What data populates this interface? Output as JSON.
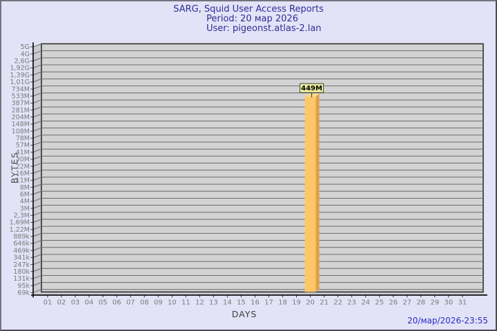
{
  "header": {
    "title": "SARG, Squid User Access Reports",
    "period": "Period: 20 мар 2026",
    "user": "User: pigeonst.atlas-2.lan"
  },
  "footer": {
    "generated": "20/мар/2026-23:55"
  },
  "chart_data": {
    "type": "bar",
    "title": "SARG, Squid User Access Reports",
    "subtitle": "Period: 20 мар 2026 — User: pigeonst.atlas-2.lan",
    "xlabel": "DAYS",
    "ylabel": "BYTES",
    "y_scale": "log",
    "y_range_labels": [
      "69k",
      "5G"
    ],
    "grid": true,
    "y_tick_labels": [
      "5G",
      "4G",
      "2,6G",
      "1,92G",
      "1,39G",
      "1,01G",
      "734M",
      "533M",
      "387M",
      "281M",
      "204M",
      "148M",
      "108M",
      "78M",
      "57M",
      "41M",
      "30M",
      "22M",
      "16M",
      "11M",
      "8M",
      "6M",
      "4M",
      "3M",
      "2,3M",
      "1,69M",
      "1,22M",
      "889k",
      "646k",
      "469k",
      "341k",
      "247k",
      "180k",
      "131k",
      "95k",
      "69k"
    ],
    "x_tick_labels": [
      "01",
      "02",
      "03",
      "04",
      "05",
      "06",
      "07",
      "08",
      "09",
      "10",
      "11",
      "12",
      "13",
      "14",
      "15",
      "16",
      "17",
      "18",
      "19",
      "20",
      "21",
      "22",
      "23",
      "24",
      "25",
      "26",
      "27",
      "28",
      "29",
      "30",
      "31"
    ],
    "bars": [
      {
        "day": 20,
        "value_label": "449M"
      }
    ],
    "colors": {
      "page_bg": "#e3e3f7",
      "plot_face": "#d3d3d3",
      "wall": "#cacad0",
      "gridline": "#6b6b6b",
      "axis": "#000000",
      "tick_text": "#7a7a7a",
      "title_text": "#2d2d96",
      "footer_text": "#2a2ac8",
      "bar_front": "#fdc768",
      "bar_side": "#dda146",
      "bar_top": "#fbd890",
      "value_box_bg": "#eeee9e",
      "value_box_border": "#45453a"
    }
  }
}
